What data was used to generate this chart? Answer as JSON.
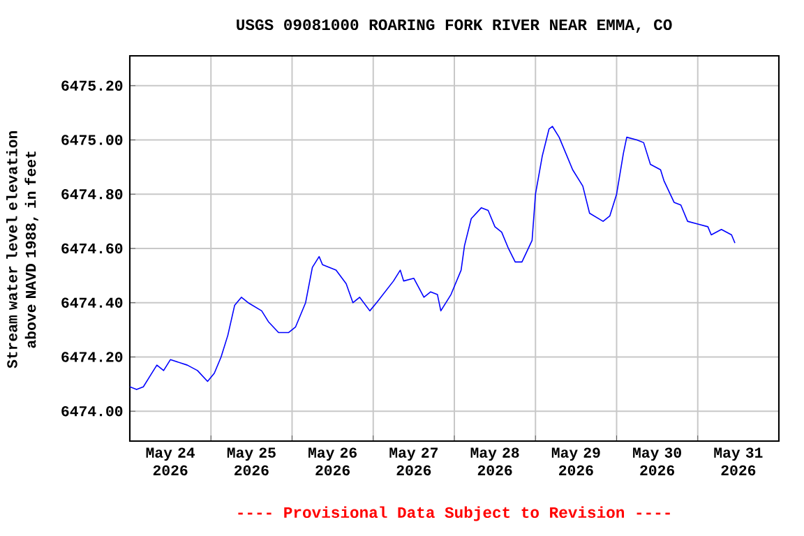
{
  "chart_data": {
    "type": "line",
    "title": "USGS 09081000 ROARING FORK RIVER NEAR EMMA, CO",
    "ylabel": "Stream water level elevation above NAVD 1988, in feet",
    "annotations": [
      "---- Provisional Data Subject to Revision ----"
    ],
    "grid": true,
    "xlim": [
      "2026-05-24T00:00",
      "2026-06-01T00:00"
    ],
    "xticks": [
      {
        "value": "2026-05-24T00:00",
        "label": null
      },
      {
        "value": "2026-05-25T00:00",
        "label": null
      },
      {
        "value": "2026-05-26T00:00",
        "label": null
      },
      {
        "value": "2026-05-27T00:00",
        "label": null
      },
      {
        "value": "2026-05-28T00:00",
        "label": null
      },
      {
        "value": "2026-05-29T00:00",
        "label": null
      },
      {
        "value": "2026-05-30T00:00",
        "label": null
      },
      {
        "value": "2026-05-31T00:00",
        "label": null
      },
      {
        "value": "2026-06-01T00:00",
        "label": null
      },
      {
        "value": "2026-05-24T12:00",
        "label": "May 24 2026"
      },
      {
        "value": "2026-05-25T12:00",
        "label": "May 25 2026"
      },
      {
        "value": "2026-05-26T12:00",
        "label": "May 26 2026"
      },
      {
        "value": "2026-05-27T12:00",
        "label": "May 27 2026"
      },
      {
        "value": "2026-05-28T12:00",
        "label": "May 28 2026"
      },
      {
        "value": "2026-05-29T12:00",
        "label": "May 29 2026"
      },
      {
        "value": "2026-05-30T12:00",
        "label": "May 30 2026"
      },
      {
        "value": "2026-05-31T12:00",
        "label": "May 31 2026"
      }
    ],
    "ylim": [
      6473.89,
      6475.31
    ],
    "yticks": [
      {
        "value": 6474.0,
        "label": "6474.00"
      },
      {
        "value": 6474.2,
        "label": "6474.20"
      },
      {
        "value": 6474.4,
        "label": "6474.40"
      },
      {
        "value": 6474.6,
        "label": "6474.60"
      },
      {
        "value": 6474.8,
        "label": "6474.80"
      },
      {
        "value": 6475.0,
        "label": "6475.00"
      },
      {
        "value": 6475.2,
        "label": "6475.20"
      }
    ],
    "series": [
      {
        "color": "#0000ff",
        "x": [
          "2026-05-24T00:00",
          "2026-05-24T02:00",
          "2026-05-24T04:00",
          "2026-05-24T06:00",
          "2026-05-24T07:00",
          "2026-05-24T08:00",
          "2026-05-24T10:00",
          "2026-05-24T12:00",
          "2026-05-24T17:00",
          "2026-05-24T20:00",
          "2026-05-24T23:00",
          "2026-05-25T01:00",
          "2026-05-25T03:00",
          "2026-05-25T05:00",
          "2026-05-25T07:00",
          "2026-05-25T09:00",
          "2026-05-25T11:00",
          "2026-05-25T15:00",
          "2026-05-25T17:00",
          "2026-05-25T20:00",
          "2026-05-25T23:00",
          "2026-05-26T01:00",
          "2026-05-26T04:00",
          "2026-05-26T06:00",
          "2026-05-26T08:00",
          "2026-05-26T09:00",
          "2026-05-26T13:00",
          "2026-05-26T16:00",
          "2026-05-26T18:00",
          "2026-05-26T20:00",
          "2026-05-26T23:00",
          "2026-05-27T01:00",
          "2026-05-27T06:00",
          "2026-05-27T08:00",
          "2026-05-27T09:00",
          "2026-05-27T12:00",
          "2026-05-27T15:00",
          "2026-05-27T17:00",
          "2026-05-27T19:00",
          "2026-05-27T20:00",
          "2026-05-27T23:00",
          "2026-05-28T02:00",
          "2026-05-28T03:00",
          "2026-05-28T05:00",
          "2026-05-28T08:00",
          "2026-05-28T10:00",
          "2026-05-28T12:00",
          "2026-05-28T14:00",
          "2026-05-28T16:00",
          "2026-05-28T18:00",
          "2026-05-28T20:00",
          "2026-05-28T23:00",
          "2026-05-29T00:00",
          "2026-05-29T02:00",
          "2026-05-29T04:00",
          "2026-05-29T05:00",
          "2026-05-29T07:00",
          "2026-05-29T09:00",
          "2026-05-29T11:00",
          "2026-05-29T14:00",
          "2026-05-29T16:00",
          "2026-05-29T20:00",
          "2026-05-29T22:00",
          "2026-05-30T00:00",
          "2026-05-30T02:00",
          "2026-05-30T03:00",
          "2026-05-30T06:00",
          "2026-05-30T08:00",
          "2026-05-30T10:00",
          "2026-05-30T13:00",
          "2026-05-30T14:00",
          "2026-05-30T17:00",
          "2026-05-30T19:00",
          "2026-05-30T21:00",
          "2026-05-31T00:00",
          "2026-05-31T03:00",
          "2026-05-31T04:00",
          "2026-05-31T07:00",
          "2026-05-31T10:00",
          "2026-05-31T11:00"
        ],
        "values": [
          6474.09,
          6474.08,
          6474.09,
          6474.13,
          6474.15,
          6474.17,
          6474.15,
          6474.19,
          6474.17,
          6474.15,
          6474.11,
          6474.14,
          6474.2,
          6474.28,
          6474.39,
          6474.42,
          6474.4,
          6474.37,
          6474.33,
          6474.29,
          6474.29,
          6474.31,
          6474.4,
          6474.53,
          6474.57,
          6474.54,
          6474.52,
          6474.47,
          6474.4,
          6474.42,
          6474.37,
          6474.4,
          6474.48,
          6474.52,
          6474.48,
          6474.49,
          6474.42,
          6474.44,
          6474.43,
          6474.37,
          6474.43,
          6474.52,
          6474.61,
          6474.71,
          6474.75,
          6474.74,
          6474.68,
          6474.66,
          6474.6,
          6474.55,
          6474.55,
          6474.63,
          6474.8,
          6474.94,
          6475.04,
          6475.05,
          6475.01,
          6474.95,
          6474.89,
          6474.83,
          6474.73,
          6474.7,
          6474.72,
          6474.8,
          6474.95,
          6475.01,
          6475.0,
          6474.99,
          6474.91,
          6474.89,
          6474.85,
          6474.77,
          6474.76,
          6474.7,
          6474.69,
          6474.68,
          6474.65,
          6474.67,
          6474.65,
          6474.62
        ]
      }
    ]
  }
}
